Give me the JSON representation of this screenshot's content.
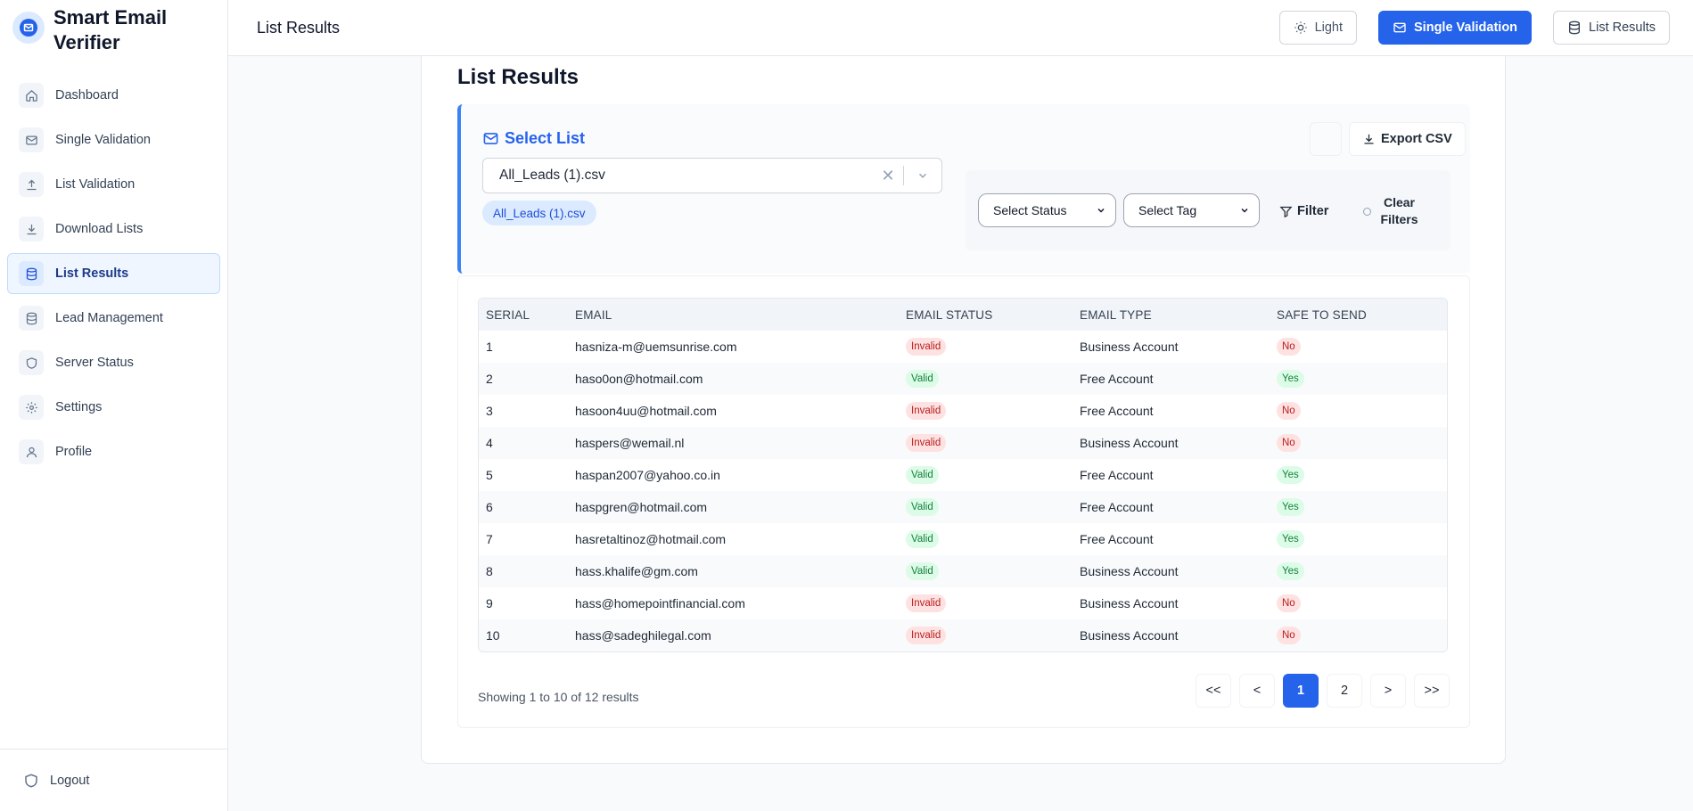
{
  "brand": {
    "name": "Smart Email Verifier"
  },
  "sidebar": {
    "items": [
      {
        "label": "Dashboard",
        "icon": "home-icon"
      },
      {
        "label": "Single Validation",
        "icon": "mail-icon"
      },
      {
        "label": "List Validation",
        "icon": "upload-icon"
      },
      {
        "label": "Download Lists",
        "icon": "download-icon"
      },
      {
        "label": "List Results",
        "icon": "database-icon",
        "active": true
      },
      {
        "label": "Lead Management",
        "icon": "database-icon"
      },
      {
        "label": "Server Status",
        "icon": "shield-icon"
      },
      {
        "label": "Settings",
        "icon": "gear-icon"
      },
      {
        "label": "Profile",
        "icon": "user-icon"
      }
    ],
    "logout_label": "Logout"
  },
  "header": {
    "title": "List Results",
    "theme_label": "Light",
    "single_validation_label": "Single Validation",
    "list_results_label": "List Results"
  },
  "main": {
    "page_title": "List Results",
    "select_list_label": "Select List",
    "selected_list": "All_Leads (1).csv",
    "chip_label": "All_Leads (1).csv",
    "export_label": "Export CSV",
    "status_select": "Select Status",
    "tag_select": "Select Tag",
    "filter_label": "Filter",
    "clear_filters_label": "Clear Filters"
  },
  "table": {
    "columns": [
      "SERIAL",
      "EMAIL",
      "EMAIL STATUS",
      "EMAIL TYPE",
      "SAFE TO SEND"
    ],
    "rows": [
      {
        "serial": "1",
        "email": "hasniza-m@uemsunrise.com",
        "status": "Invalid",
        "type": "Business Account",
        "safe": "No"
      },
      {
        "serial": "2",
        "email": "haso0on@hotmail.com",
        "status": "Valid",
        "type": "Free Account",
        "safe": "Yes"
      },
      {
        "serial": "3",
        "email": "hasoon4uu@hotmail.com",
        "status": "Invalid",
        "type": "Free Account",
        "safe": "No"
      },
      {
        "serial": "4",
        "email": "haspers@wemail.nl",
        "status": "Invalid",
        "type": "Business Account",
        "safe": "No"
      },
      {
        "serial": "5",
        "email": "haspan2007@yahoo.co.in",
        "status": "Valid",
        "type": "Free Account",
        "safe": "Yes"
      },
      {
        "serial": "6",
        "email": "haspgren@hotmail.com",
        "status": "Valid",
        "type": "Free Account",
        "safe": "Yes"
      },
      {
        "serial": "7",
        "email": "hasretaltinoz@hotmail.com",
        "status": "Valid",
        "type": "Free Account",
        "safe": "Yes"
      },
      {
        "serial": "8",
        "email": "hass.khalife@gm.com",
        "status": "Valid",
        "type": "Business Account",
        "safe": "Yes"
      },
      {
        "serial": "9",
        "email": "hass@homepointfinancial.com",
        "status": "Invalid",
        "type": "Business Account",
        "safe": "No"
      },
      {
        "serial": "10",
        "email": "hass@sadeghilegal.com",
        "status": "Invalid",
        "type": "Business Account",
        "safe": "No"
      }
    ]
  },
  "pagination": {
    "showing_text": "Showing 1 to 10 of 12 results",
    "first": "<<",
    "prev": "<",
    "pages": [
      "1",
      "2"
    ],
    "current": "1",
    "next": ">",
    "last": ">>"
  },
  "colors": {
    "accent": "#2563eb",
    "invalid": "#b91c1c",
    "valid": "#15803d"
  }
}
